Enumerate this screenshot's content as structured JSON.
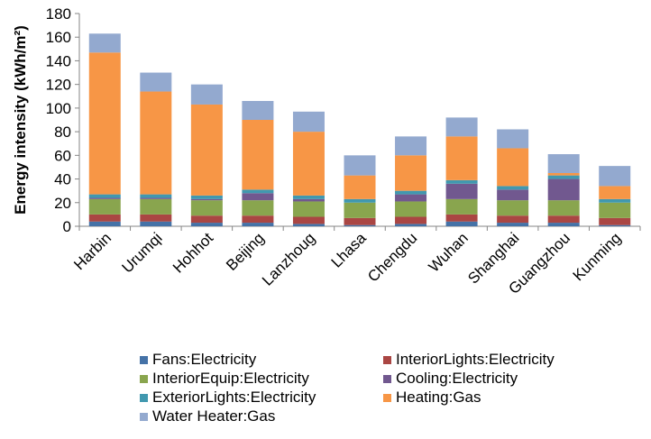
{
  "chart_data": {
    "type": "bar",
    "stacked": true,
    "title": "",
    "xlabel": "",
    "ylabel": "Energy intensity (kWh/m²)",
    "ylim": [
      0,
      180
    ],
    "yticks": [
      "0",
      "20",
      "40",
      "60",
      "80",
      "100",
      "120",
      "140",
      "160",
      "180"
    ],
    "grid": false,
    "legend_position": "bottom",
    "categories": [
      "Harbin",
      "Urumqi",
      "Hohhot",
      "Beijing",
      "Lanzhoug",
      "Lhasa",
      "Chengdu",
      "Wuhan",
      "Shanghai",
      "Guangzhou",
      "Kunming"
    ],
    "series": [
      {
        "name": "Fans:Electricity",
        "color": "#4572A7",
        "values": [
          4,
          4,
          3,
          3,
          2,
          1,
          2,
          4,
          3,
          3,
          1
        ]
      },
      {
        "name": "InteriorLights:Electricity",
        "color": "#AA4643",
        "values": [
          6,
          6,
          6,
          6,
          6,
          6,
          6,
          6,
          6,
          6,
          6
        ]
      },
      {
        "name": "InteriorEquip:Electricity",
        "color": "#89A54E",
        "values": [
          13,
          13,
          13,
          13,
          13,
          13,
          13,
          13,
          13,
          13,
          13
        ]
      },
      {
        "name": "Cooling:Electricity",
        "color": "#71588F",
        "values": [
          1,
          1,
          1,
          6,
          2,
          0,
          6,
          13,
          9,
          18,
          0
        ]
      },
      {
        "name": "ExteriorLights:Electricity",
        "color": "#4198AF",
        "values": [
          3,
          3,
          3,
          3,
          3,
          3,
          3,
          3,
          3,
          3,
          3
        ]
      },
      {
        "name": "Heating:Gas",
        "color": "#F79646",
        "values": [
          120,
          87,
          77,
          59,
          54,
          20,
          30,
          37,
          32,
          2,
          11
        ]
      },
      {
        "name": "Water Heater:Gas",
        "color": "#93A9CF",
        "values": [
          16,
          16,
          17,
          16,
          17,
          17,
          16,
          16,
          16,
          16,
          17
        ]
      }
    ]
  }
}
